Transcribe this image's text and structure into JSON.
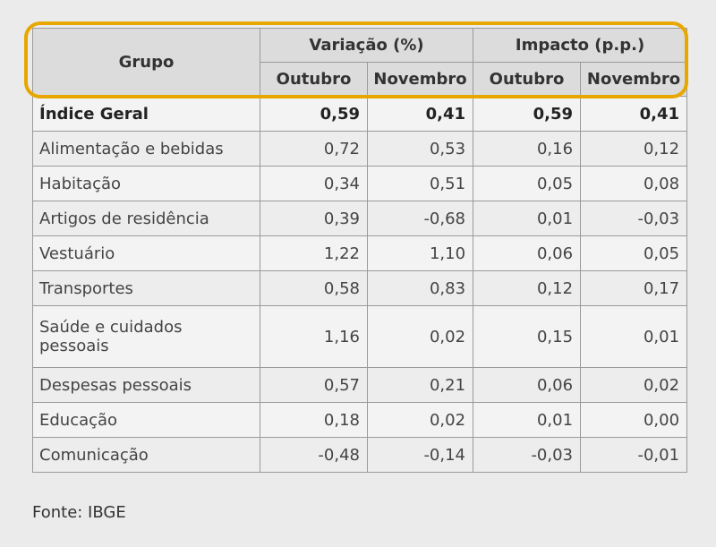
{
  "table": {
    "header": {
      "group": "Grupo",
      "variation": "Variação (%)",
      "impact": "Impacto (p.p.)",
      "sub": [
        "Outubro",
        "Novembro",
        "Outubro",
        "Novembro"
      ]
    },
    "rows": [
      {
        "label": "Índice Geral",
        "values": [
          "0,59",
          "0,41",
          "0,59",
          "0,41"
        ]
      },
      {
        "label": "Alimentação e bebidas",
        "values": [
          "0,72",
          "0,53",
          "0,16",
          "0,12"
        ]
      },
      {
        "label": "Habitação",
        "values": [
          "0,34",
          "0,51",
          "0,05",
          "0,08"
        ]
      },
      {
        "label": "Artigos de residência",
        "values": [
          "0,39",
          "-0,68",
          "0,01",
          "-0,03"
        ]
      },
      {
        "label": "Vestuário",
        "values": [
          "1,22",
          "1,10",
          "0,06",
          "0,05"
        ]
      },
      {
        "label": "Transportes",
        "values": [
          "0,58",
          "0,83",
          "0,12",
          "0,17"
        ]
      },
      {
        "label": "Saúde e cuidados pessoais",
        "values": [
          "1,16",
          "0,02",
          "0,15",
          "0,01"
        ]
      },
      {
        "label": "Despesas pessoais",
        "values": [
          "0,57",
          "0,21",
          "0,06",
          "0,02"
        ]
      },
      {
        "label": "Educação",
        "values": [
          "0,18",
          "0,02",
          "0,01",
          "0,00"
        ]
      },
      {
        "label": "Comunicação",
        "values": [
          "-0,48",
          "-0,14",
          "-0,03",
          "-0,01"
        ]
      }
    ]
  },
  "source": "Fonte: IBGE",
  "colors": {
    "highlight": "#e8a700",
    "header_bg": "#dcdcdc",
    "border": "#9a9a9a"
  }
}
